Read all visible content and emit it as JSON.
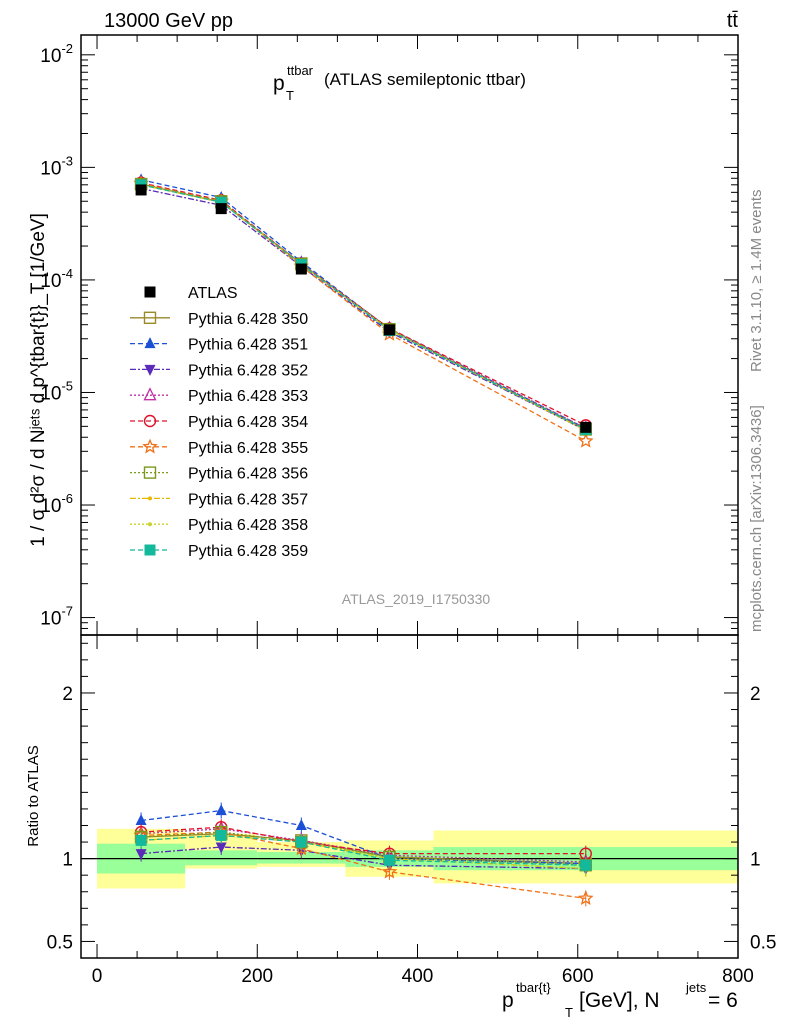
{
  "header": {
    "left": "13000 GeV pp",
    "right": "tt̄"
  },
  "side_labels": {
    "rivet": "Rivet 3.1.10, ≥ 1.4M events",
    "mcplots": "mcplots.cern.ch [arXiv:1306.3436]"
  },
  "chart_data": [
    {
      "type": "line",
      "title_main": "p",
      "title_sup": "ttbar",
      "title_sub": "T",
      "title_rest": "(ATLAS semileptonic ttbar)",
      "analysis_tag": "ATLAS_2019_I1750330",
      "ylabel": "1 / σ d²σ / d Nʲᵉᵗˢ d p^{tbar{t}}_T [1/GeV]",
      "yscale": "log",
      "ylim": [
        7e-08,
        0.015
      ],
      "xlim": [
        -20,
        800
      ],
      "y_ticks": [
        {
          "v": 0.01,
          "m": "10",
          "e": "-2"
        },
        {
          "v": 0.001,
          "m": "10",
          "e": "-3"
        },
        {
          "v": 0.0001,
          "m": "10",
          "e": "-4"
        },
        {
          "v": 1e-05,
          "m": "10",
          "e": "-5"
        },
        {
          "v": 1e-06,
          "m": "10",
          "e": "-6"
        },
        {
          "v": 1e-07,
          "m": "10",
          "e": "-7"
        }
      ],
      "x": [
        55,
        155,
        255,
        365,
        610
      ],
      "reference": {
        "name": "ATLAS",
        "values": [
          0.00063,
          0.00043,
          0.000125,
          3.6e-05,
          4.9e-06
        ]
      },
      "series": [
        {
          "name": "Pythia 6.428 350",
          "color": "#9a8a28",
          "dash": "",
          "marker": "square-open",
          "values": [
            0.00071,
            0.00049,
            0.00014,
            3.6e-05,
            4.7e-06
          ]
        },
        {
          "name": "Pythia 6.428 351",
          "color": "#1a4fd6",
          "dash": "5,3",
          "marker": "triangle-up",
          "values": [
            0.000775,
            0.00054,
            0.000145,
            3.65e-05,
            4.8e-06
          ]
        },
        {
          "name": "Pythia 6.428 352",
          "color": "#5a2ab8",
          "dash": "6,2,2,2",
          "marker": "triangle-down",
          "values": [
            0.00065,
            0.00046,
            0.000132,
            3.45e-05,
            4.6e-06
          ]
        },
        {
          "name": "Pythia 6.428 353",
          "color": "#c32fa6",
          "dash": "2,2",
          "marker": "triangle-open",
          "values": [
            0.00072,
            0.0005,
            0.000139,
            3.7e-05,
            4.8e-06
          ]
        },
        {
          "name": "Pythia 6.428 354",
          "color": "#e0102a",
          "dash": "5,3",
          "marker": "circle-open",
          "values": [
            0.00073,
            0.00051,
            0.000138,
            3.7e-05,
            5.1e-06
          ]
        },
        {
          "name": "Pythia 6.428 355",
          "color": "#f07018",
          "dash": "5,3",
          "marker": "star",
          "values": [
            0.00072,
            0.0005,
            0.000132,
            3.3e-05,
            3.7e-06
          ]
        },
        {
          "name": "Pythia 6.428 356",
          "color": "#7b9a1c",
          "dash": "2,2",
          "marker": "square-open",
          "values": [
            0.00071,
            0.0005,
            0.000138,
            3.65e-05,
            4.7e-06
          ]
        },
        {
          "name": "Pythia 6.428 357",
          "color": "#e6b800",
          "dash": "6,2,2,2",
          "marker": "dot",
          "values": [
            0.0007,
            0.00049,
            0.000137,
            3.6e-05,
            4.6e-06
          ]
        },
        {
          "name": "Pythia 6.428 358",
          "color": "#c8d428",
          "dash": "2,2",
          "marker": "dot",
          "values": [
            0.0007,
            0.00049,
            0.000137,
            3.6e-05,
            4.6e-06
          ]
        },
        {
          "name": "Pythia 6.428 359",
          "color": "#14b89a",
          "dash": "5,3",
          "marker": "square",
          "values": [
            0.0007,
            0.00049,
            0.000137,
            3.55e-05,
            4.7e-06
          ]
        }
      ]
    },
    {
      "type": "line",
      "ylabel": "Ratio to ATLAS",
      "xlabel_main": "p",
      "xlabel_sup": "tbar{t}",
      "xlabel_sub": "T",
      "xlabel_rest": "[GeV], N",
      "xlabel_sup2": "jets",
      "xlabel_end": " = 6",
      "ylim": [
        0.4,
        2.35
      ],
      "xlim": [
        -20,
        800
      ],
      "y_ticks": [
        {
          "v": 0.5,
          "label": "0.5"
        },
        {
          "v": 1,
          "label": "1"
        },
        {
          "v": 2,
          "label": "2"
        }
      ],
      "x_ticks": [
        0,
        200,
        400,
        600,
        800
      ],
      "bins": [
        0,
        110,
        200,
        310,
        420,
        800
      ],
      "band_inner": [
        [
          0.91,
          1.09
        ],
        [
          0.96,
          1.05
        ],
        [
          0.97,
          1.04
        ],
        [
          0.95,
          1.05
        ],
        [
          0.93,
          1.07
        ]
      ],
      "band_outer": [
        [
          0.82,
          1.18
        ],
        [
          0.94,
          1.15
        ],
        [
          0.95,
          1.1
        ],
        [
          0.89,
          1.11
        ],
        [
          0.85,
          1.17
        ]
      ],
      "x": [
        55,
        155,
        255,
        365,
        610
      ],
      "series": [
        {
          "name": "Pythia 6.428 350",
          "values": [
            1.13,
            1.15,
            1.11,
            1.01,
            0.97
          ]
        },
        {
          "name": "Pythia 6.428 351",
          "values": [
            1.23,
            1.29,
            1.2,
            1.0,
            0.97
          ]
        },
        {
          "name": "Pythia 6.428 352",
          "values": [
            1.03,
            1.07,
            1.05,
            0.96,
            0.94
          ]
        },
        {
          "name": "Pythia 6.428 353",
          "values": [
            1.15,
            1.18,
            1.11,
            1.02,
            0.98
          ]
        },
        {
          "name": "Pythia 6.428 354",
          "values": [
            1.16,
            1.19,
            1.1,
            1.03,
            1.03
          ]
        },
        {
          "name": "Pythia 6.428 355",
          "values": [
            1.14,
            1.16,
            1.06,
            0.92,
            0.76
          ]
        },
        {
          "name": "Pythia 6.428 356",
          "values": [
            1.13,
            1.16,
            1.1,
            1.01,
            0.96
          ]
        },
        {
          "name": "Pythia 6.428 357",
          "values": [
            1.11,
            1.14,
            1.1,
            1.0,
            0.94
          ]
        },
        {
          "name": "Pythia 6.428 358",
          "values": [
            1.11,
            1.14,
            1.1,
            1.0,
            0.94
          ]
        },
        {
          "name": "Pythia 6.428 359",
          "values": [
            1.11,
            1.14,
            1.1,
            0.99,
            0.96
          ]
        }
      ]
    }
  ]
}
